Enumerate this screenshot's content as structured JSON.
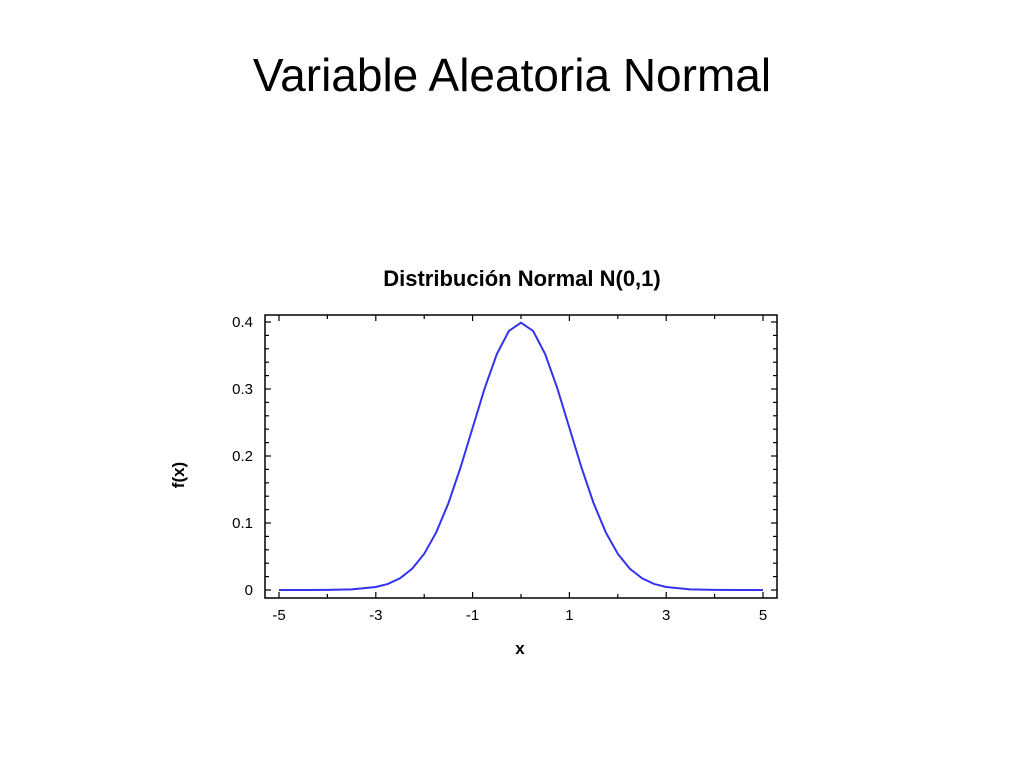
{
  "slide": {
    "title": "Variable Aleatoria Normal"
  },
  "chart_data": {
    "type": "line",
    "title": "Distribución Normal N(0,1)",
    "xlabel": "x",
    "ylabel": "f(x)",
    "xlim": [
      -5,
      5
    ],
    "ylim": [
      0,
      0.4
    ],
    "xticks": [
      -5,
      -3,
      -1,
      1,
      3,
      5
    ],
    "xtick_labels": [
      "-5",
      "-3",
      "-1",
      "1",
      "3",
      "5"
    ],
    "yticks": [
      0,
      0.1,
      0.2,
      0.3,
      0.4
    ],
    "ytick_labels": [
      "0",
      "0.1",
      "0.2",
      "0.3",
      "0.4"
    ],
    "grid": false,
    "line_color": "#3333ee",
    "series": [
      {
        "x": [
          -5,
          -4.5,
          -4,
          -3.5,
          -3,
          -2.75,
          -2.5,
          -2.25,
          -2,
          -1.75,
          -1.5,
          -1.25,
          -1,
          -0.75,
          -0.5,
          -0.25,
          0,
          0.25,
          0.5,
          0.75,
          1,
          1.25,
          1.5,
          1.75,
          2,
          2.25,
          2.5,
          2.75,
          3,
          3.5,
          4,
          4.5,
          5
        ],
        "y": [
          1.5e-06,
          1.6e-05,
          0.000134,
          0.000873,
          0.004432,
          0.009094,
          0.017528,
          0.03174,
          0.053991,
          0.086277,
          0.129518,
          0.182649,
          0.241971,
          0.301137,
          0.352065,
          0.386668,
          0.398942,
          0.386668,
          0.352065,
          0.301137,
          0.241971,
          0.182649,
          0.129518,
          0.086277,
          0.053991,
          0.03174,
          0.017528,
          0.009094,
          0.004432,
          0.000873,
          0.000134,
          1.6e-05,
          1.5e-06
        ]
      }
    ]
  }
}
